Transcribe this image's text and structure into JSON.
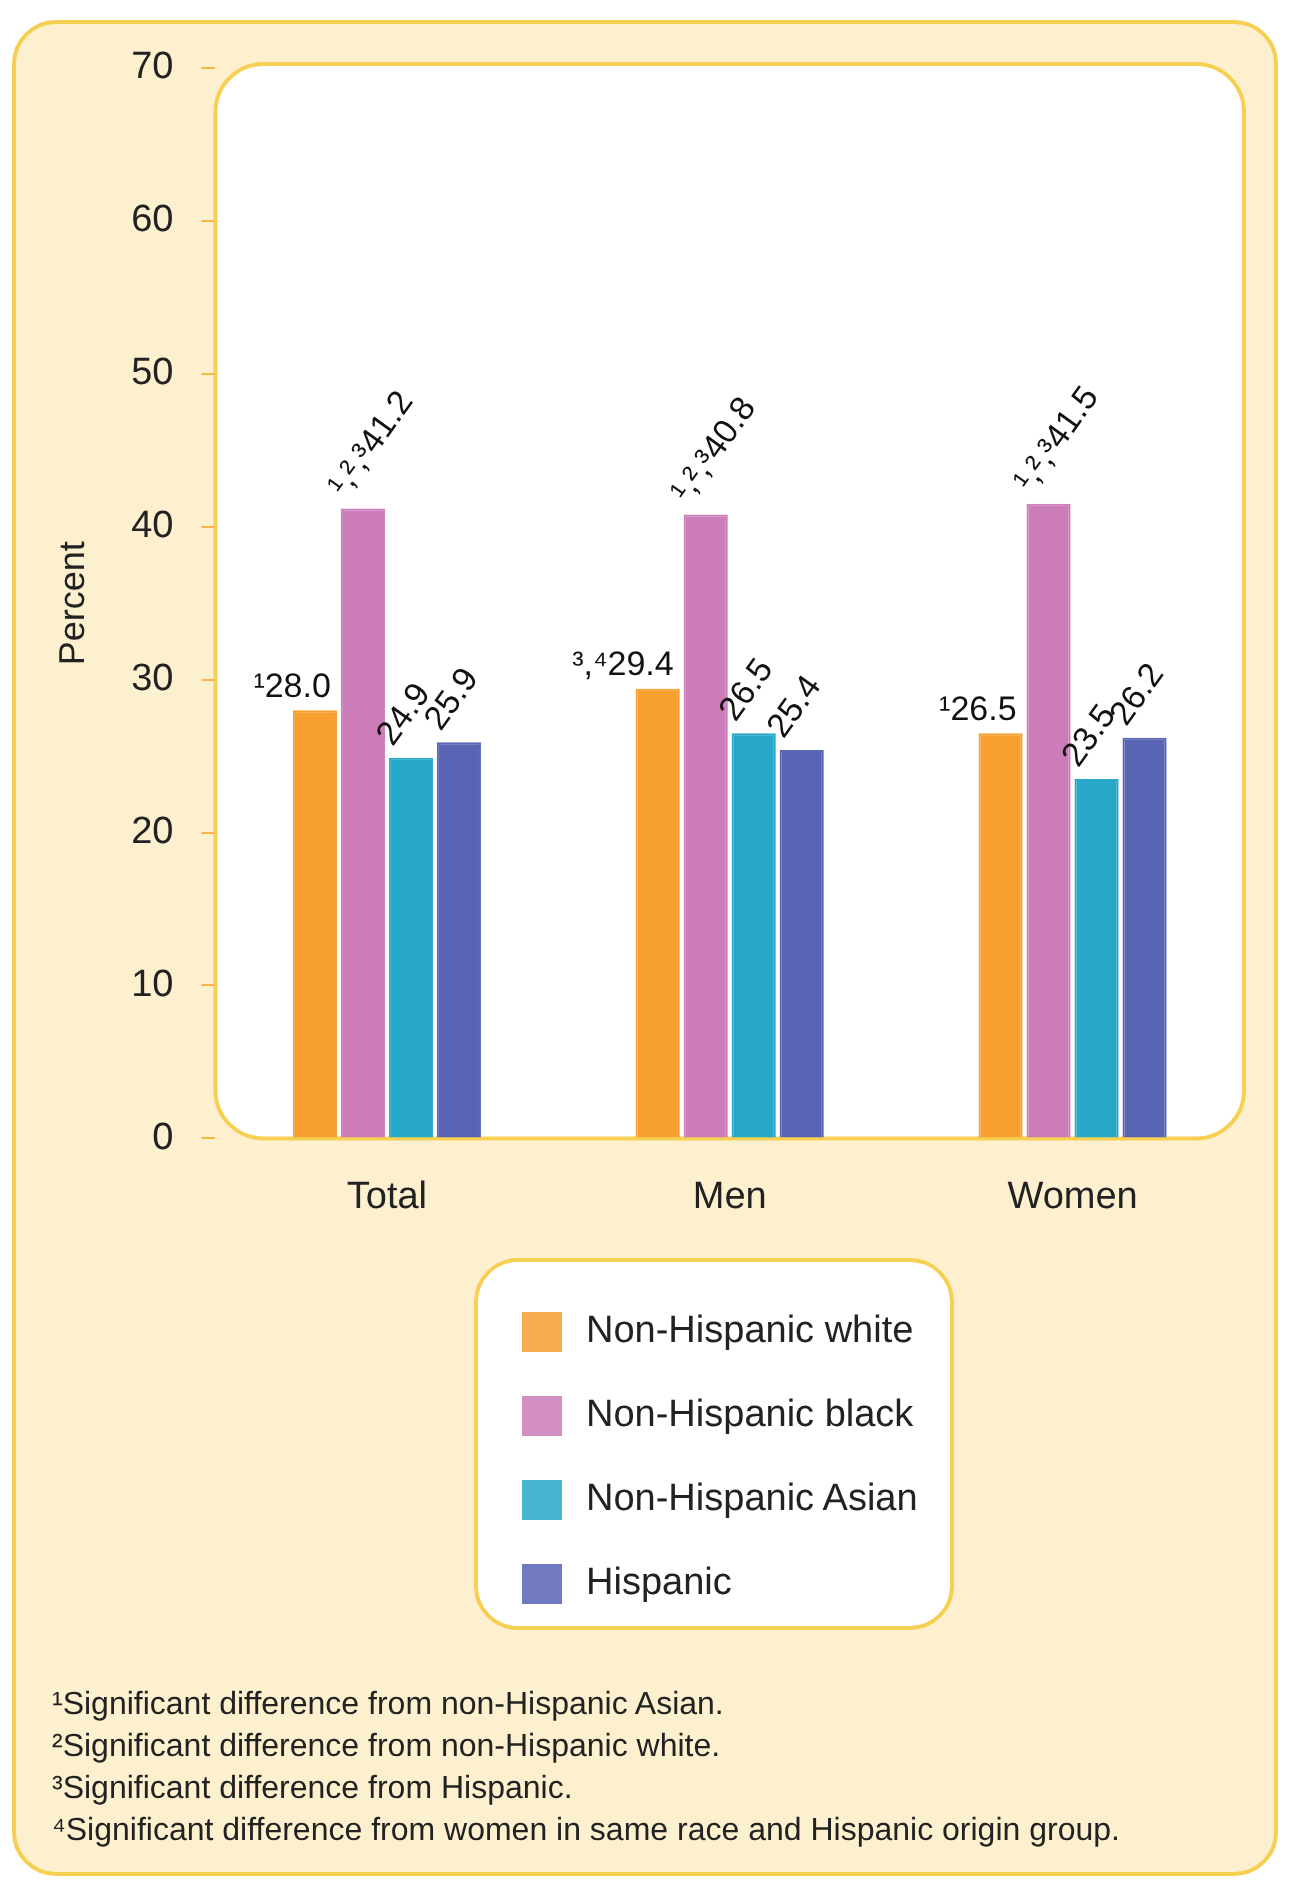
{
  "chart_data": {
    "type": "bar",
    "ylabel": "Percent",
    "categories": [
      "Total",
      "Men",
      "Women"
    ],
    "series": [
      {
        "name": "Non-Hispanic white",
        "color": "#f7a030",
        "values": [
          28.0,
          29.4,
          26.5
        ],
        "value_labels": [
          "¹28.0",
          "³,⁴29.4",
          "¹26.5"
        ]
      },
      {
        "name": "Non-Hispanic black",
        "color": "#cc7cb8",
        "values": [
          41.2,
          40.8,
          41.5
        ],
        "value_labels": [
          "¹,²,³41.2",
          "¹,²,³40.8",
          "¹,²,³41.5"
        ]
      },
      {
        "name": "Non-Hispanic Asian",
        "color": "#27a8c8",
        "values": [
          24.9,
          26.5,
          23.5
        ],
        "value_labels": [
          "24.9",
          "26.5",
          "23.5"
        ]
      },
      {
        "name": "Hispanic",
        "color": "#5a64b4",
        "values": [
          25.9,
          25.4,
          26.2
        ],
        "value_labels": [
          "25.9",
          "25.4",
          "26.2"
        ]
      }
    ],
    "ylim": [
      0,
      70
    ],
    "yticks": [
      0,
      10,
      20,
      30,
      40,
      50,
      60,
      70
    ],
    "grid": false,
    "legend": "bottom",
    "annotations": [
      "¹Significant difference from non-Hispanic Asian.",
      "²Significant difference from non-Hispanic white.",
      "³Significant difference from Hispanic.",
      "⁴Significant difference from women in same race and Hispanic origin group."
    ]
  }
}
